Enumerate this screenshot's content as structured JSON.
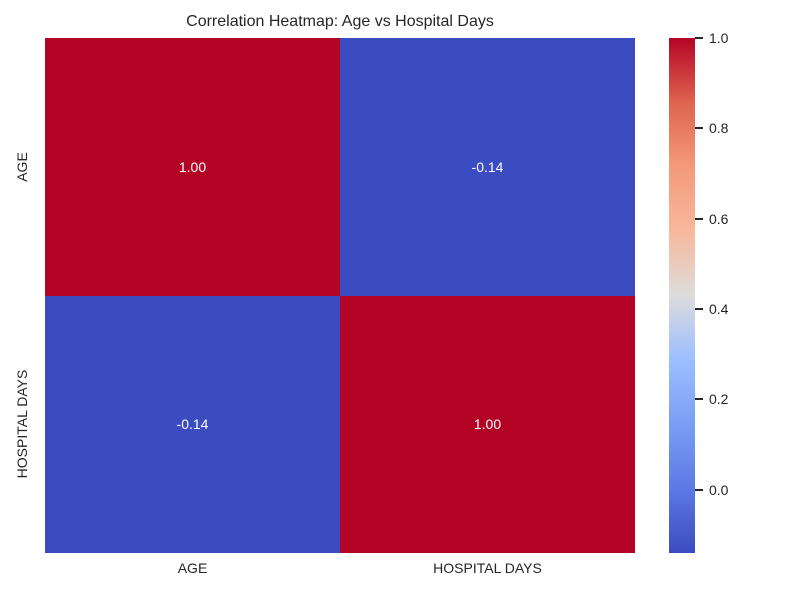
{
  "chart_data": {
    "type": "heatmap",
    "title": "Correlation Heatmap: Age vs Hospital Days",
    "categories": [
      "AGE",
      "HOSPITAL DAYS"
    ],
    "matrix": [
      [
        1.0,
        -0.14
      ],
      [
        -0.14,
        1.0
      ]
    ],
    "cell_labels": [
      [
        "1.00",
        "-0.14"
      ],
      [
        "-0.14",
        "1.00"
      ]
    ],
    "cell_colors": [
      [
        "#b40426",
        "#3b4cc0"
      ],
      [
        "#3b4cc0",
        "#b40426"
      ]
    ],
    "annotation_color": "#ffffff",
    "colormap": "coolwarm",
    "text_color": "#262626",
    "background": "#ffffff",
    "legend_position": "right-colorbar",
    "grid": false,
    "colorbar": {
      "vmin": -0.14,
      "vmax": 1.0,
      "ticks": [
        {
          "value": 1.0,
          "label": "1.0"
        },
        {
          "value": 0.8,
          "label": "0.8"
        },
        {
          "value": 0.6,
          "label": "0.6"
        },
        {
          "value": 0.4,
          "label": "0.4"
        },
        {
          "value": 0.2,
          "label": "0.2"
        },
        {
          "value": 0.0,
          "label": "0.0"
        }
      ],
      "gradient": [
        {
          "pos": 0,
          "color": "#b40426"
        },
        {
          "pos": 12.5,
          "color": "#de644f"
        },
        {
          "pos": 25,
          "color": "#f49a7b"
        },
        {
          "pos": 37.5,
          "color": "#f7b89c"
        },
        {
          "pos": 50,
          "color": "#dddcdc"
        },
        {
          "pos": 62.5,
          "color": "#9dbeff"
        },
        {
          "pos": 75,
          "color": "#7b9ef4"
        },
        {
          "pos": 87.5,
          "color": "#5d79e5"
        },
        {
          "pos": 100,
          "color": "#3b4cc0"
        }
      ]
    }
  }
}
